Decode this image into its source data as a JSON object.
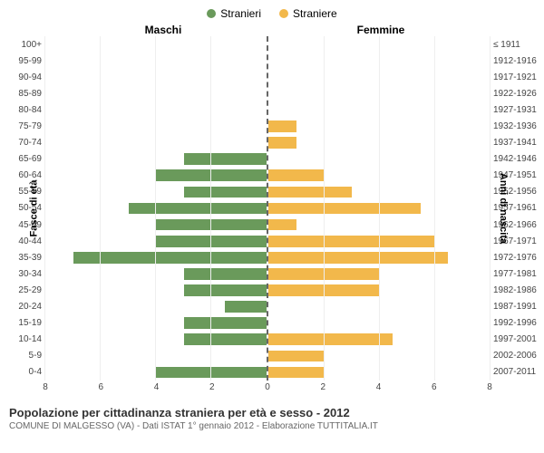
{
  "legend": {
    "male": {
      "label": "Stranieri",
      "color": "#6a9a5b"
    },
    "female": {
      "label": "Straniere",
      "color": "#f2b84b"
    }
  },
  "headers": {
    "left": "Maschi",
    "right": "Femmine"
  },
  "axis_titles": {
    "left": "Fasce di età",
    "right": "Anni di nascita"
  },
  "chart": {
    "type": "population-pyramid",
    "x_max": 8,
    "x_ticks": [
      0,
      2,
      4,
      6,
      8
    ],
    "grid_color": "#eeeeee",
    "center_line_color": "#666666",
    "bar_colors": {
      "male": "#6a9a5b",
      "female": "#f2b84b"
    },
    "age_groups": [
      {
        "age": "100+",
        "birth": "≤ 1911",
        "m": 0,
        "f": 0
      },
      {
        "age": "95-99",
        "birth": "1912-1916",
        "m": 0,
        "f": 0
      },
      {
        "age": "90-94",
        "birth": "1917-1921",
        "m": 0,
        "f": 0
      },
      {
        "age": "85-89",
        "birth": "1922-1926",
        "m": 0,
        "f": 0
      },
      {
        "age": "80-84",
        "birth": "1927-1931",
        "m": 0,
        "f": 0
      },
      {
        "age": "75-79",
        "birth": "1932-1936",
        "m": 0,
        "f": 1
      },
      {
        "age": "70-74",
        "birth": "1937-1941",
        "m": 0,
        "f": 1
      },
      {
        "age": "65-69",
        "birth": "1942-1946",
        "m": 3,
        "f": 0
      },
      {
        "age": "60-64",
        "birth": "1947-1951",
        "m": 4,
        "f": 2
      },
      {
        "age": "55-59",
        "birth": "1952-1956",
        "m": 3,
        "f": 3
      },
      {
        "age": "50-54",
        "birth": "1957-1961",
        "m": 5,
        "f": 5.5
      },
      {
        "age": "45-49",
        "birth": "1962-1966",
        "m": 4,
        "f": 1
      },
      {
        "age": "40-44",
        "birth": "1967-1971",
        "m": 4,
        "f": 6
      },
      {
        "age": "35-39",
        "birth": "1972-1976",
        "m": 7,
        "f": 6.5
      },
      {
        "age": "30-34",
        "birth": "1977-1981",
        "m": 3,
        "f": 4
      },
      {
        "age": "25-29",
        "birth": "1982-1986",
        "m": 3,
        "f": 4
      },
      {
        "age": "20-24",
        "birth": "1987-1991",
        "m": 1.5,
        "f": 0
      },
      {
        "age": "15-19",
        "birth": "1992-1996",
        "m": 3,
        "f": 0
      },
      {
        "age": "10-14",
        "birth": "1997-2001",
        "m": 3,
        "f": 4.5
      },
      {
        "age": "5-9",
        "birth": "2002-2006",
        "m": 0,
        "f": 2
      },
      {
        "age": "0-4",
        "birth": "2007-2011",
        "m": 4,
        "f": 2
      }
    ]
  },
  "footer": {
    "title": "Popolazione per cittadinanza straniera per età e sesso - 2012",
    "subtitle": "COMUNE DI MALGESSO (VA) - Dati ISTAT 1° gennaio 2012 - Elaborazione TUTTITALIA.IT"
  }
}
